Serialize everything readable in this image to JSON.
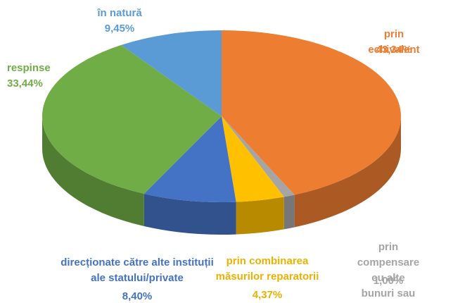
{
  "chart_data": {
    "type": "pie",
    "start_angle": 0,
    "direction": "clockwise",
    "categories": [
      "prin echivalent",
      "prin compensare cu alte\nbunuri sau servicii",
      "prin combinarea\nmăsurilor reparatorii",
      "direcționate către alte instituții\nale statului/private",
      "respinse",
      "în natură"
    ],
    "values": [
      43.34,
      1.0,
      4.37,
      8.4,
      33.44,
      9.45
    ],
    "value_labels": [
      "43,34%",
      "1,00%",
      "4,37%",
      "8,40%",
      "33,44%",
      "9,45%"
    ],
    "colors": [
      "#ED7D31",
      "#A5A5A5",
      "#FFC000",
      "#4472C4",
      "#70AD47",
      "#5B9BD5"
    ]
  }
}
